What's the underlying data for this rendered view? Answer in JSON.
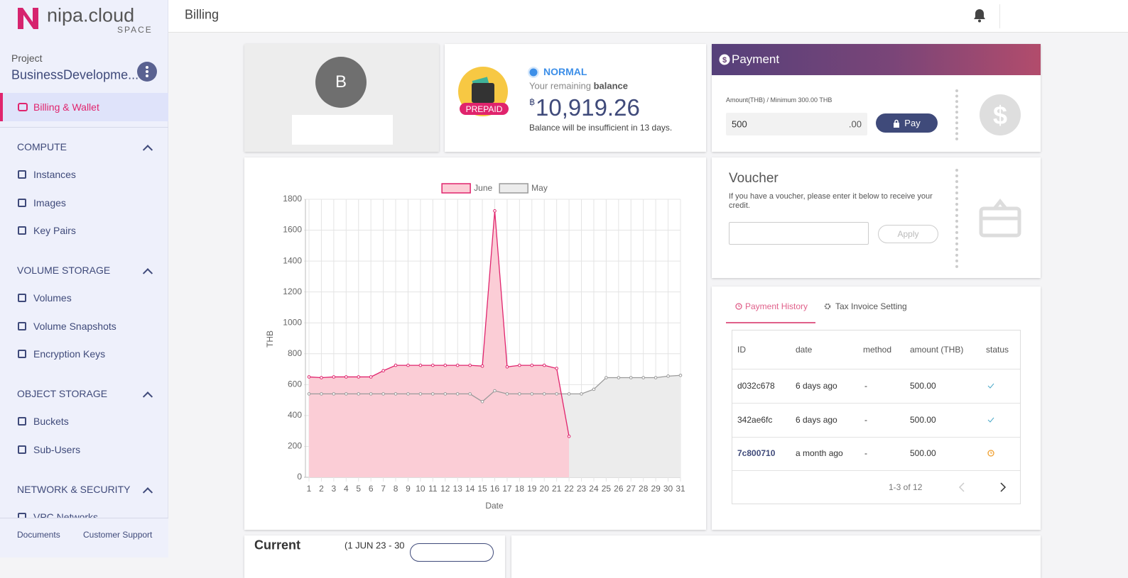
{
  "sidebar": {
    "brand": "nipa.cloud",
    "brand_sub": "SPACE",
    "project_label": "Project",
    "project_name": "BusinessDevelopme...",
    "active_item": "Billing & Wallet",
    "sections": [
      {
        "title": "COMPUTE",
        "items": [
          "Instances",
          "Images",
          "Key Pairs"
        ]
      },
      {
        "title": "VOLUME STORAGE",
        "items": [
          "Volumes",
          "Volume Snapshots",
          "Encryption Keys"
        ]
      },
      {
        "title": "OBJECT STORAGE",
        "items": [
          "Buckets",
          "Sub-Users"
        ]
      },
      {
        "title": "NETWORK & SECURITY",
        "items": [
          "VPC Networks"
        ]
      }
    ],
    "footer": [
      "Documents",
      "Customer Support"
    ]
  },
  "header": {
    "title": "Billing"
  },
  "profile": {
    "avatar": "B"
  },
  "balance": {
    "badge": "PREPAID",
    "status": "NORMAL",
    "remaining_prefix": "Your remaining",
    "remaining_word": "balance",
    "currency": "฿",
    "amount": "10,919.26",
    "note": "Balance will be insufficient in 13 days."
  },
  "payment": {
    "title": "Payment",
    "amount_label": "Amount(THB) / Minimum 300.00 THB",
    "amount": "500",
    "decimals": ".00",
    "button": "Pay"
  },
  "voucher": {
    "title": "Voucher",
    "description": "If you have a voucher, please enter it below to receive your credit.",
    "button": "Apply"
  },
  "history": {
    "tabs": [
      "Payment History",
      "Tax Invoice Setting"
    ],
    "columns": [
      "ID",
      "date",
      "method",
      "amount (THB)",
      "status"
    ],
    "rows": [
      [
        "d032c678",
        "6 days ago",
        "-",
        "500.00"
      ],
      [
        "342ae6fc",
        "6 days ago",
        "-",
        "500.00"
      ],
      [
        "7c800710",
        "a month ago",
        "-",
        "500.00"
      ]
    ],
    "pagination": "1-3 of 12"
  },
  "summary": {
    "title": "Current",
    "period": "(1 JUN 23 - 30"
  },
  "chart_data": {
    "type": "line",
    "y_label": "THB",
    "x_label": "Date",
    "legend": "top",
    "grid": true,
    "categories": [
      "1",
      "2",
      "3",
      "4",
      "5",
      "6",
      "7",
      "8",
      "9",
      "10",
      "11",
      "12",
      "13",
      "14",
      "15",
      "16",
      "17",
      "18",
      "19",
      "20",
      "21",
      "22",
      "23",
      "24",
      "25",
      "26",
      "27",
      "28",
      "29",
      "30",
      "31"
    ],
    "series": [
      {
        "name": "June",
        "color": "#e0246d",
        "fill_color": "#fbcdd6",
        "values": [
          650,
          645,
          650,
          650,
          650,
          650,
          690,
          725,
          725,
          725,
          725,
          725,
          725,
          725,
          720,
          1725,
          715,
          725,
          725,
          725,
          705,
          265,
          null,
          null,
          null,
          null,
          null,
          null,
          null,
          null,
          null
        ]
      },
      {
        "name": "May",
        "color": "#9a9a9a",
        "fill_color": "#ececec",
        "values": [
          540,
          540,
          540,
          540,
          540,
          540,
          540,
          540,
          540,
          540,
          540,
          540,
          540,
          540,
          490,
          560,
          540,
          540,
          540,
          540,
          540,
          540,
          540,
          570,
          645,
          645,
          645,
          645,
          645,
          655,
          660
        ]
      }
    ],
    "ylim": [
      0,
      1800
    ],
    "yticks": [
      0,
      200,
      400,
      600,
      800,
      1000,
      1200,
      1400,
      1600,
      1800
    ]
  }
}
